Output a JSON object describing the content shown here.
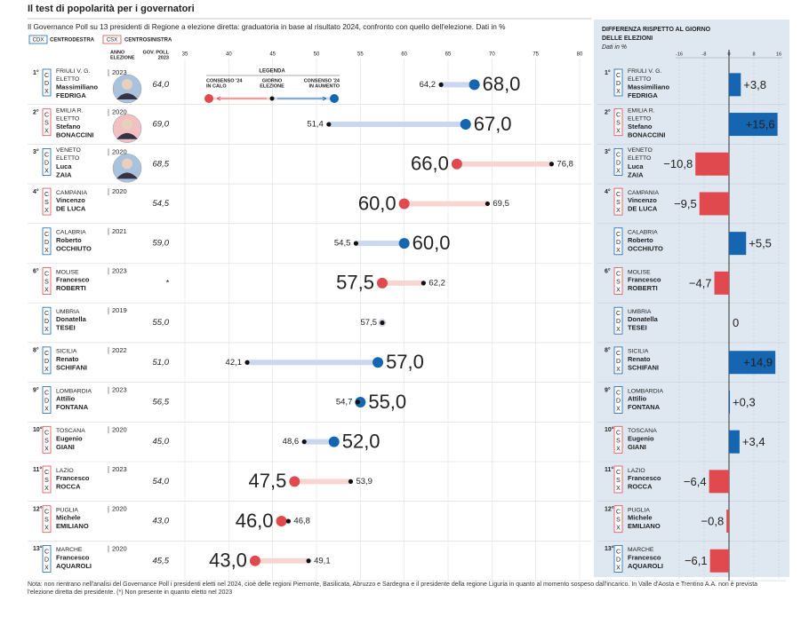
{
  "header": {
    "title": "Il test di popolarità per i governatori",
    "subtitle": "Il Governance Poll su 13 presidenti di Regione a elezione diretta: graduatoria in base al risultato 2024, confronto con quello dell'elezione. Dati in %",
    "legend": [
      {
        "code": "CDX",
        "label": "CENTRODESTRA",
        "color": "#1565b0"
      },
      {
        "code": "CSX",
        "label": "CENTROSINISTRA",
        "color": "#e04a4f"
      }
    ]
  },
  "columns": {
    "year": [
      "ANNO",
      "ELEZIONE"
    ],
    "poll": [
      "GOV. POLL",
      "2023"
    ]
  },
  "rows": [
    {
      "rank": "1°",
      "coalition": "CDX",
      "region": "FRIULI V. G.",
      "status": "ELETTO",
      "first_name": "Massimiliano",
      "last_name": "FEDRIGA",
      "year": 2023,
      "poll": "64,0",
      "photo": true
    },
    {
      "rank": "2°",
      "coalition": "CSX",
      "region": "EMILIA R.",
      "status": "ELETTO",
      "first_name": "Stefano",
      "last_name": "BONACCINI",
      "year": 2020,
      "poll": "69,0",
      "photo": true
    },
    {
      "rank": "3°",
      "coalition": "CDX",
      "region": "VENETO",
      "status": "ELETTO",
      "first_name": "Luca",
      "last_name": "ZAIA",
      "year": 2020,
      "poll": "68,5",
      "photo": true
    },
    {
      "rank": "4°",
      "coalition": "CSX",
      "region": "CAMPANIA",
      "first_name": "Vincenzo",
      "last_name": "DE LUCA",
      "year": 2020,
      "poll": "54,5"
    },
    {
      "coalition": "CDX",
      "region": "CALABRIA",
      "first_name": "Roberto",
      "last_name": "OCCHIUTO",
      "year": 2021,
      "poll": "59,0"
    },
    {
      "rank": "6°",
      "coalition": "CSX",
      "region": "MOLISE",
      "first_name": "Francesco",
      "last_name": "ROBERTI",
      "year": 2023,
      "poll": "*"
    },
    {
      "coalition": "CDX",
      "region": "UMBRIA",
      "first_name": "Donatella",
      "last_name": "TESEI",
      "year": 2019,
      "poll": "55,0"
    },
    {
      "rank": "8°",
      "coalition": "CDX",
      "region": "SICILIA",
      "first_name": "Renato",
      "last_name": "SCHIFANI",
      "year": 2022,
      "poll": "51,0"
    },
    {
      "rank": "9°",
      "coalition": "CDX",
      "region": "LOMBARDIA",
      "first_name": "Attilio",
      "last_name": "FONTANA",
      "year": 2023,
      "poll": "56,5"
    },
    {
      "rank": "10°",
      "coalition": "CSX",
      "region": "TOSCANA",
      "first_name": "Eugenio",
      "last_name": "GIANI",
      "year": 2020,
      "poll": "45,0"
    },
    {
      "rank": "11°",
      "coalition": "CSX",
      "region": "LAZIO",
      "first_name": "Francesco",
      "last_name": "ROCCA",
      "year": 2023,
      "poll": "54,0"
    },
    {
      "rank": "12°",
      "coalition": "CSX",
      "region": "PUGLIA",
      "first_name": "Michele",
      "last_name": "EMILIANO",
      "year": 2020,
      "poll": "43,0"
    },
    {
      "rank": "13°",
      "coalition": "CDX",
      "region": "MARCHE",
      "first_name": "Francesco",
      "last_name": "AQUAROLI",
      "year": 2020,
      "poll": "45,5"
    }
  ],
  "chart_data": [
    {
      "type": "dumbbell",
      "xlim": [
        35,
        80
      ],
      "xticks": [
        35,
        40,
        45,
        50,
        55,
        60,
        65,
        70,
        75,
        80
      ],
      "grid": true,
      "election": [
        64.2,
        51.4,
        76.8,
        69.5,
        54.5,
        62.2,
        57.5,
        42.1,
        54.7,
        48.6,
        53.9,
        46.8,
        49.1
      ],
      "election_labels": [
        "64,2",
        "51,4",
        "76,8",
        "69,5",
        "54,5",
        "62,2",
        "57,5",
        "42,1",
        "54,7",
        "48,6",
        "53,9",
        "46,8",
        "49,1"
      ],
      "consensus": [
        68.0,
        67.0,
        66.0,
        60.0,
        60.0,
        57.5,
        57.5,
        57.0,
        55.0,
        52.0,
        47.5,
        46.0,
        43.0
      ],
      "consensus_labels": [
        "68,0",
        "67,0",
        "66,0",
        "60,0",
        "60,0",
        "57,5",
        null,
        "57,0",
        "55,0",
        "52,0",
        "47,5",
        "46,0",
        "43,0"
      ],
      "increase_color": "#1565b0",
      "decrease_color": "#e04a4f",
      "equal_color": "#cdd3da",
      "increase_line": "#c9d8ef",
      "decrease_line": "#f7d5d1",
      "legend": {
        "title": "LEGENDA",
        "decrease": [
          "CONSENSO '24",
          "IN CALO"
        ],
        "election": [
          "GIORNO",
          "ELEZIONE"
        ],
        "increase": [
          "CONSENSO '24",
          "IN AUMENTO"
        ]
      }
    },
    {
      "type": "bar",
      "title": [
        "DIFFERENZA RISPETTO AL GIORNO",
        "DELLE ELEZIONI"
      ],
      "subtitle": "Dati in %",
      "xlim": [
        -16,
        16
      ],
      "xticks": [
        -16,
        -8,
        0,
        8,
        16
      ],
      "values": [
        3.8,
        15.6,
        -10.8,
        -9.5,
        5.5,
        -4.7,
        0,
        14.9,
        0.3,
        3.4,
        -6.4,
        -0.8,
        -6.1
      ],
      "value_labels": [
        "+3,8",
        "+15,6",
        "−10,8",
        "−9,5",
        "+5,5",
        "−4,7",
        "0",
        "+14,9",
        "+0,3",
        "+3,4",
        "−6,4",
        "−0,8",
        "−6,1"
      ],
      "positive_color": "#1565b0",
      "negative_color": "#e04a4f",
      "background": "#dfe8f1"
    }
  ],
  "note": "Nota: non rientrano nell'analisi del Governance Poll i presidenti eletti nel 2024, cioè delle regioni Piemonte, Basilicata, Abruzzo e Sardegna e il presidente della regione Liguria in quanto al momento sospeso dall'incarico. In Valle d'Aosta e Trentino A.A. non è prevista l'elezione diretta dei presidente. (*) Non presente in quanto eletto nel 2023"
}
